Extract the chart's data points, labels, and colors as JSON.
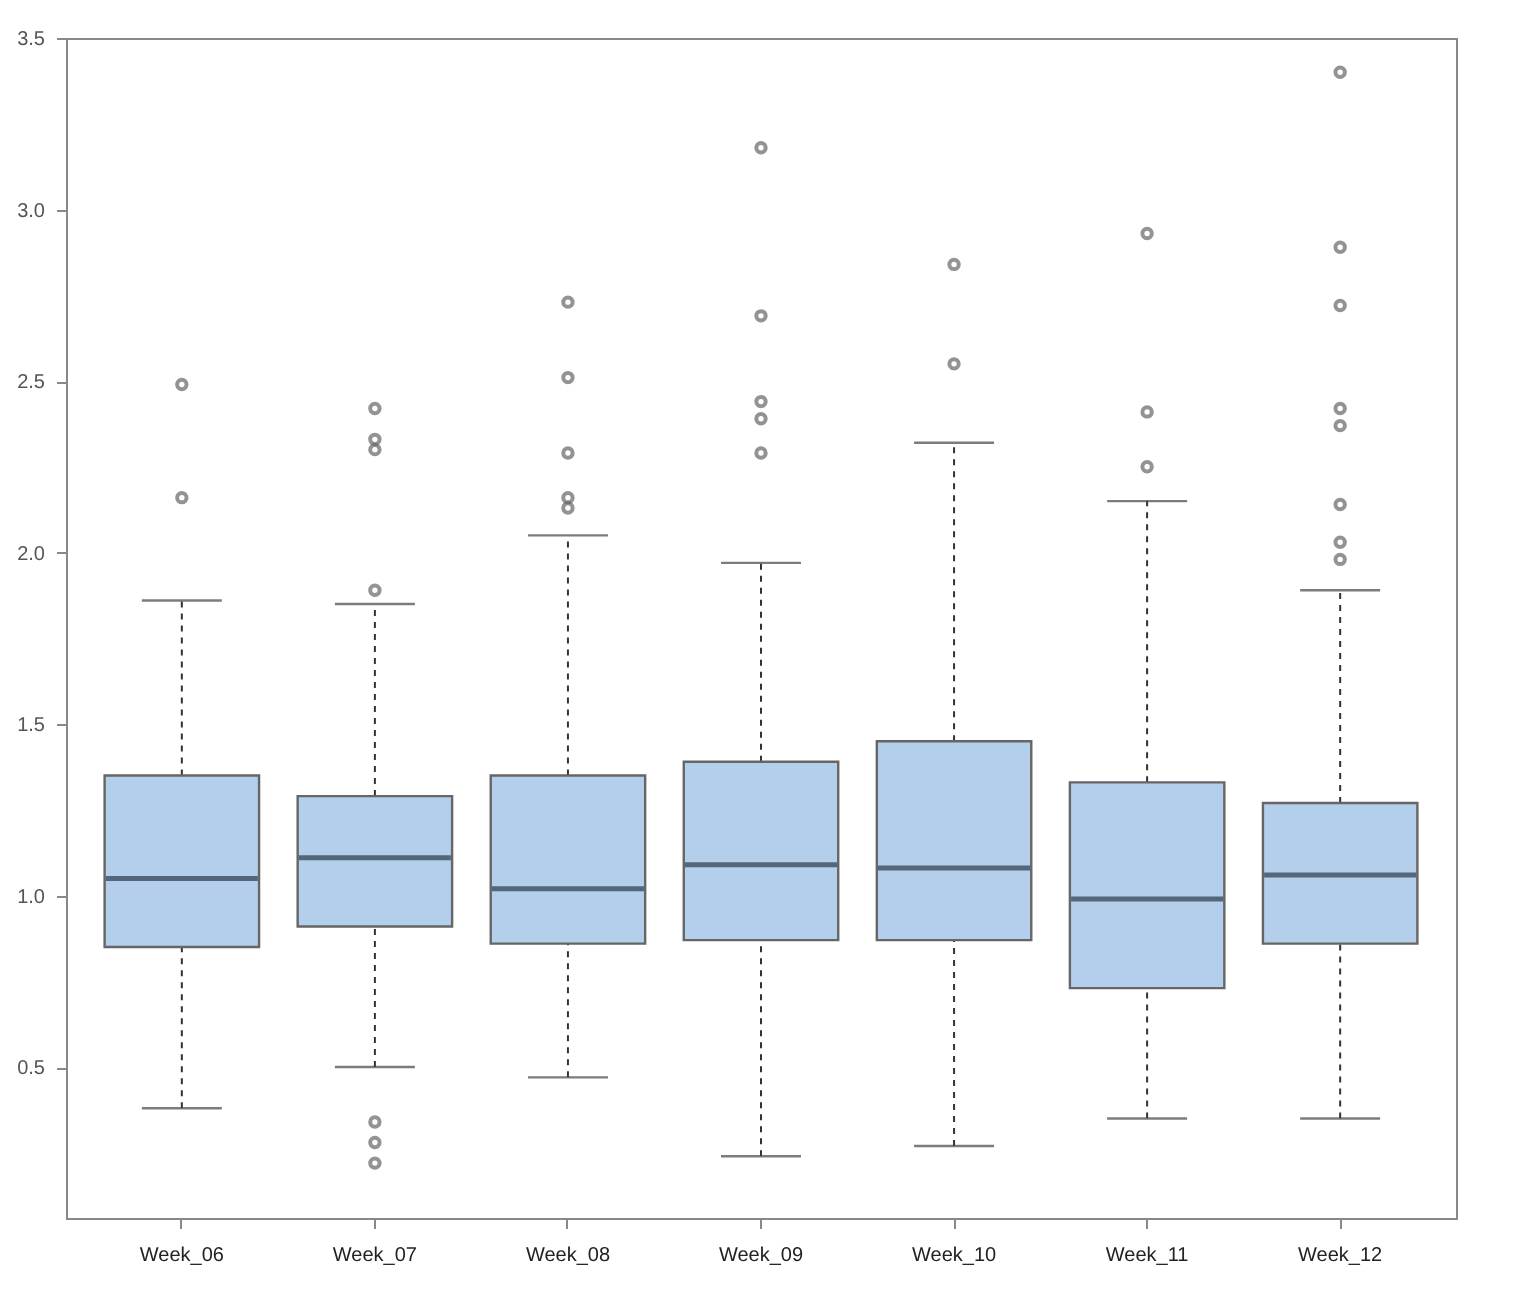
{
  "chart_data": {
    "type": "box",
    "categories": [
      "Week_06",
      "Week_07",
      "Week_08",
      "Week_09",
      "Week_10",
      "Week_11",
      "Week_12"
    ],
    "series": [
      {
        "color": "#b4cfeb",
        "boxes": [
          {
            "low": 0.38,
            "q1": 0.85,
            "median": 1.05,
            "q3": 1.35,
            "high": 1.86,
            "outliers": [
              2.16,
              2.49
            ]
          },
          {
            "low": 0.5,
            "q1": 0.91,
            "median": 1.11,
            "q3": 1.29,
            "high": 1.85,
            "outliers": [
              0.34,
              0.28,
              0.22,
              1.89,
              2.3,
              2.33,
              2.42
            ]
          },
          {
            "low": 0.47,
            "q1": 0.86,
            "median": 1.02,
            "q3": 1.35,
            "high": 2.05,
            "outliers": [
              2.13,
              2.16,
              2.29,
              2.51,
              2.73
            ]
          },
          {
            "low": 0.24,
            "q1": 0.87,
            "median": 1.09,
            "q3": 1.39,
            "high": 1.97,
            "outliers": [
              2.29,
              2.39,
              2.44,
              2.69,
              3.18
            ]
          },
          {
            "low": 0.27,
            "q1": 0.87,
            "median": 1.08,
            "q3": 1.45,
            "high": 2.32,
            "outliers": [
              2.55,
              2.84
            ]
          },
          {
            "low": 0.35,
            "q1": 0.73,
            "median": 0.99,
            "q3": 1.33,
            "high": 2.15,
            "outliers": [
              2.25,
              2.41,
              2.93
            ]
          },
          {
            "low": 0.35,
            "q1": 0.86,
            "median": 1.06,
            "q3": 1.27,
            "high": 1.89,
            "outliers": [
              1.98,
              2.03,
              2.14,
              2.37,
              2.42,
              2.72,
              2.89,
              3.4
            ]
          }
        ]
      }
    ],
    "ylim": [
      0.06,
      3.5
    ],
    "yticks": [
      0.5,
      {
        "value": 1,
        "label": "1.0"
      },
      1.5,
      {
        "value": 2,
        "label": "2.0"
      },
      2.5,
      {
        "value": 3,
        "label": "3.0"
      },
      3.5
    ],
    "grid": false,
    "marker": "circle",
    "line_style": "dashed"
  }
}
